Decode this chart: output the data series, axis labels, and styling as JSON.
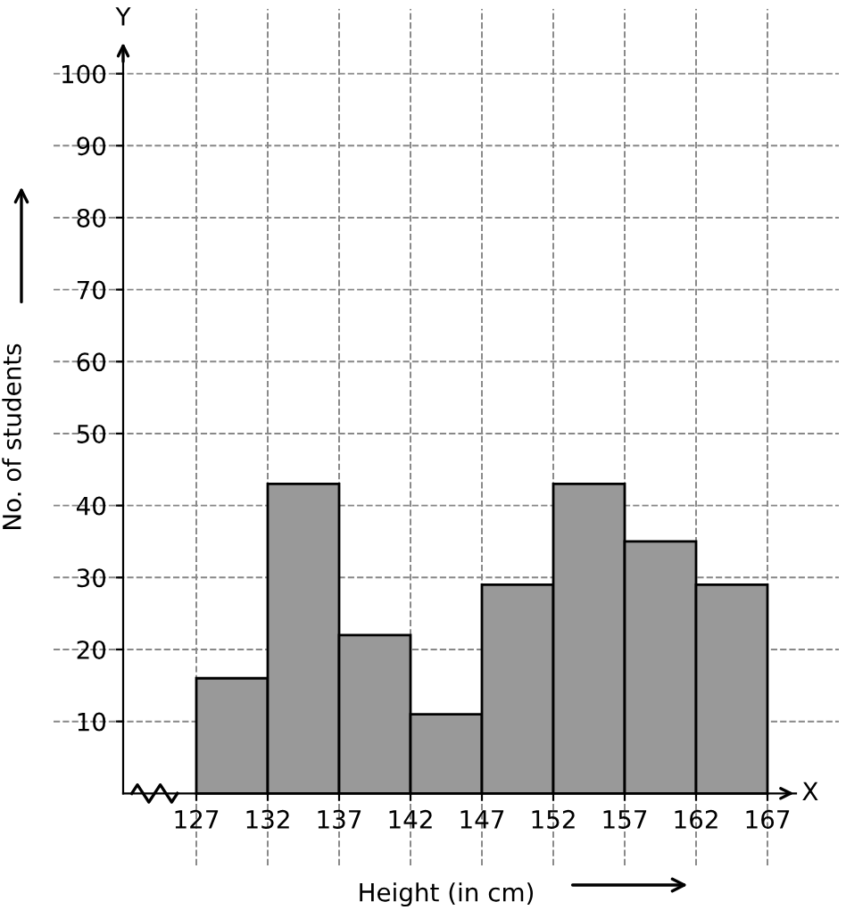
{
  "chart_data": {
    "type": "histogram",
    "xlabel": "Height (in cm)",
    "ylabel": "No. of students",
    "bins": [
      127,
      132,
      137,
      142,
      147,
      152,
      157,
      162,
      167
    ],
    "values": [
      16,
      43,
      22,
      11,
      29,
      43,
      35,
      29
    ],
    "color": "#999999",
    "xlim": [
      117,
      172
    ],
    "ylim": [
      -10,
      109
    ],
    "xticks": [
      127,
      132,
      137,
      142,
      147,
      152,
      157,
      162,
      167
    ],
    "yticks": [
      10,
      20,
      30,
      40,
      50,
      60,
      70,
      80,
      90,
      100
    ],
    "grid": true,
    "annotations": [
      "X",
      "Y"
    ]
  }
}
